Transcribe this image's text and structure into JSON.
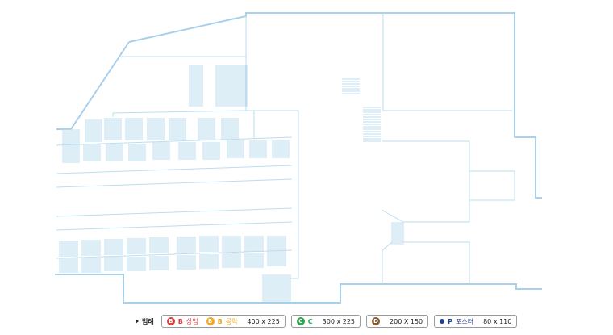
{
  "legend": {
    "title": "범례",
    "items": [
      {
        "id": "b",
        "badge": "B",
        "code": "B",
        "tag": "상업",
        "badge_color": "#e03c3c",
        "text_color": "#e03c3c"
      },
      {
        "id": "b2",
        "badge": "B",
        "code": "B",
        "tag": "공익",
        "badge_color": "#f0a820",
        "text_color": "#f0a820",
        "size": "400 x 225"
      },
      {
        "id": "c",
        "badge": "C",
        "code": "C",
        "badge_color": "#2fa84f",
        "text_color": "#2fa84f",
        "size": "300 x 225"
      },
      {
        "id": "d",
        "badge": "D",
        "badge_color": "#8a5a2b",
        "size": "200 X 150"
      },
      {
        "id": "p",
        "code": "P",
        "tag": "포스터",
        "badge_color": "#1f3f8f",
        "text_color": "#1f3f8f",
        "size": "80 x 110"
      }
    ]
  }
}
